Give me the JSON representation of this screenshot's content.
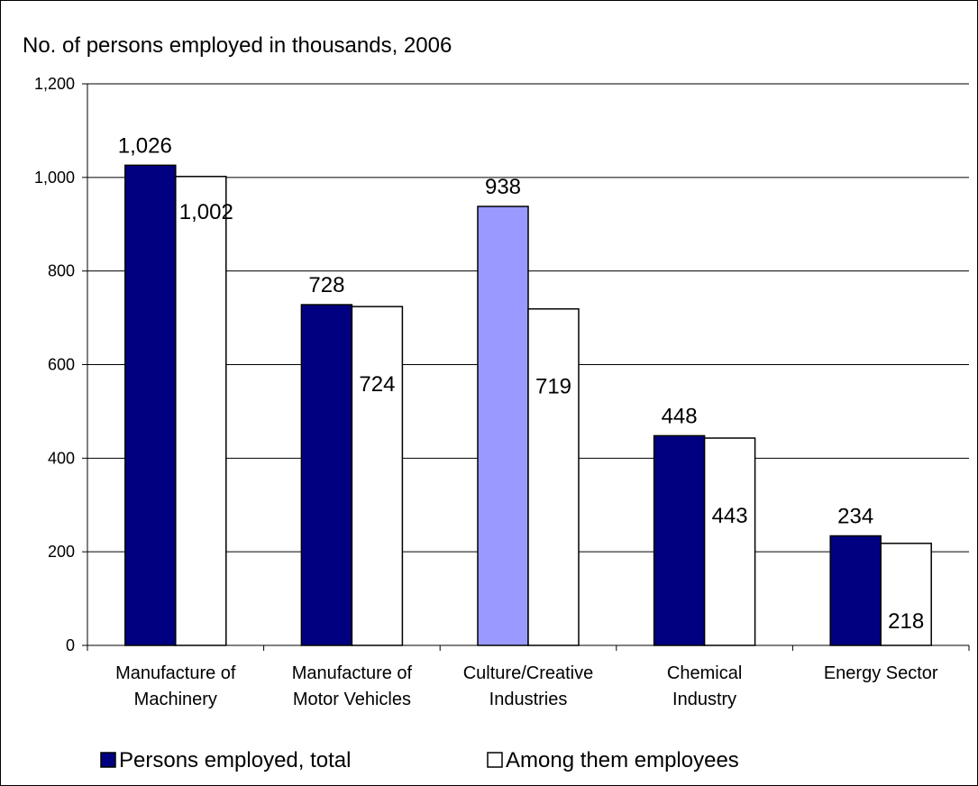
{
  "chart_data": {
    "type": "bar",
    "title": "No. of persons employed in thousands, 2006",
    "categories": [
      [
        "Manufacture of",
        "Machinery"
      ],
      [
        "Manufacture of",
        "Motor Vehicles"
      ],
      [
        "Culture/Creative",
        "Industries"
      ],
      [
        "Chemical",
        "Industry"
      ],
      [
        "Energy Sector"
      ]
    ],
    "series": [
      {
        "name": "Persons employed, total",
        "values": [
          1026,
          728,
          938,
          448,
          234
        ],
        "labels": [
          "1,026",
          "728",
          "938",
          "448",
          "234"
        ],
        "color": "#000080",
        "highlight": {
          "index": 2,
          "color": "#9999ff"
        }
      },
      {
        "name": "Among them employees",
        "values": [
          1002,
          724,
          719,
          443,
          218
        ],
        "labels": [
          "1,002",
          "724",
          "719",
          "443",
          "218"
        ],
        "color": "#ffffff"
      }
    ],
    "ylim": [
      0,
      1200
    ],
    "yticks": [
      0,
      200,
      400,
      600,
      800,
      1000,
      1200
    ],
    "ytick_labels": [
      "0",
      "200",
      "400",
      "600",
      "800",
      "1,000",
      "1,200"
    ],
    "grid": true,
    "legend": "bottom"
  }
}
